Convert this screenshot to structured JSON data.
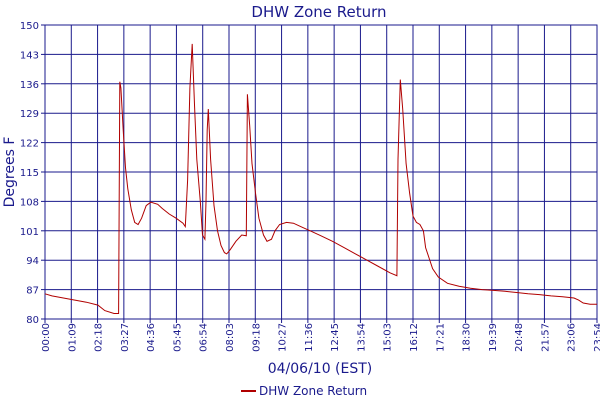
{
  "chart_data": {
    "type": "line",
    "title": "DHW Zone Return",
    "xlabel": "04/06/10 (EST)",
    "ylabel": "Degrees F",
    "ylim": [
      80,
      150
    ],
    "yticks": [
      80,
      87,
      94,
      101,
      108,
      115,
      122,
      129,
      136,
      143,
      150
    ],
    "xticks": [
      "00:00",
      "01:09",
      "02:18",
      "03:27",
      "04:36",
      "05:45",
      "06:54",
      "08:03",
      "09:18",
      "10:27",
      "11:36",
      "12:45",
      "13:54",
      "15:03",
      "16:12",
      "17:21",
      "18:30",
      "19:39",
      "20:48",
      "21:57",
      "23:06",
      "23:54"
    ],
    "grid": true,
    "legend": "bottom-center",
    "colors": {
      "series": "#b00000",
      "grid": "#1a1a8c",
      "text": "#1a1a8c"
    },
    "series": [
      {
        "name": "DHW Zone Return",
        "points": [
          [
            0.0,
            86.0
          ],
          [
            0.3,
            85.5
          ],
          [
            0.8,
            85.0
          ],
          [
            1.3,
            84.5
          ],
          [
            1.8,
            84.0
          ],
          [
            2.3,
            83.3
          ],
          [
            2.6,
            82.0
          ],
          [
            3.0,
            81.3
          ],
          [
            3.2,
            81.3
          ],
          [
            3.25,
            136.5
          ],
          [
            3.3,
            135.0
          ],
          [
            3.4,
            125.0
          ],
          [
            3.5,
            116.0
          ],
          [
            3.6,
            111.0
          ],
          [
            3.75,
            106.0
          ],
          [
            3.9,
            103.0
          ],
          [
            4.05,
            102.5
          ],
          [
            4.2,
            104.0
          ],
          [
            4.4,
            107.0
          ],
          [
            4.6,
            107.8
          ],
          [
            4.9,
            107.3
          ],
          [
            5.1,
            106.3
          ],
          [
            5.4,
            105.0
          ],
          [
            5.7,
            104.0
          ],
          [
            6.0,
            102.8
          ],
          [
            6.1,
            102.0
          ],
          [
            6.2,
            113.0
          ],
          [
            6.3,
            135.0
          ],
          [
            6.4,
            145.5
          ],
          [
            6.5,
            131.0
          ],
          [
            6.6,
            118.0
          ],
          [
            6.75,
            108.0
          ],
          [
            6.85,
            100.0
          ],
          [
            6.95,
            99.0
          ],
          [
            7.0,
            108.0
          ],
          [
            7.05,
            125.0
          ],
          [
            7.1,
            130.0
          ],
          [
            7.2,
            118.0
          ],
          [
            7.35,
            107.0
          ],
          [
            7.5,
            101.0
          ],
          [
            7.65,
            97.5
          ],
          [
            7.8,
            95.8
          ],
          [
            7.9,
            95.5
          ],
          [
            8.05,
            96.5
          ],
          [
            8.3,
            98.5
          ],
          [
            8.55,
            100.0
          ],
          [
            8.75,
            99.8
          ],
          [
            8.8,
            133.5
          ],
          [
            8.9,
            126.0
          ],
          [
            9.0,
            117.0
          ],
          [
            9.15,
            110.0
          ],
          [
            9.3,
            104.0
          ],
          [
            9.5,
            100.0
          ],
          [
            9.65,
            98.5
          ],
          [
            9.85,
            99.0
          ],
          [
            10.0,
            101.0
          ],
          [
            10.2,
            102.5
          ],
          [
            10.5,
            103.0
          ],
          [
            10.8,
            102.8
          ],
          [
            11.2,
            101.8
          ],
          [
            11.6,
            100.8
          ],
          [
            12.0,
            99.8
          ],
          [
            12.5,
            98.5
          ],
          [
            13.0,
            97.0
          ],
          [
            13.5,
            95.5
          ],
          [
            14.0,
            94.0
          ],
          [
            14.5,
            92.5
          ],
          [
            15.0,
            91.0
          ],
          [
            15.3,
            90.3
          ],
          [
            15.35,
            118.0
          ],
          [
            15.45,
            137.0
          ],
          [
            15.55,
            130.0
          ],
          [
            15.7,
            117.0
          ],
          [
            15.85,
            110.0
          ],
          [
            16.0,
            104.5
          ],
          [
            16.15,
            103.0
          ],
          [
            16.3,
            102.5
          ],
          [
            16.45,
            101.0
          ],
          [
            16.55,
            97.0
          ],
          [
            16.7,
            94.5
          ],
          [
            16.85,
            92.0
          ],
          [
            17.1,
            90.0
          ],
          [
            17.5,
            88.5
          ],
          [
            18.0,
            87.8
          ],
          [
            18.5,
            87.3
          ],
          [
            19.0,
            87.0
          ],
          [
            19.5,
            86.8
          ],
          [
            20.0,
            86.6
          ],
          [
            20.5,
            86.3
          ],
          [
            21.0,
            86.0
          ],
          [
            21.5,
            85.8
          ],
          [
            22.0,
            85.5
          ],
          [
            22.5,
            85.3
          ],
          [
            23.0,
            85.0
          ],
          [
            23.2,
            84.5
          ],
          [
            23.4,
            83.8
          ],
          [
            23.7,
            83.5
          ],
          [
            24.0,
            83.5
          ]
        ]
      }
    ]
  }
}
